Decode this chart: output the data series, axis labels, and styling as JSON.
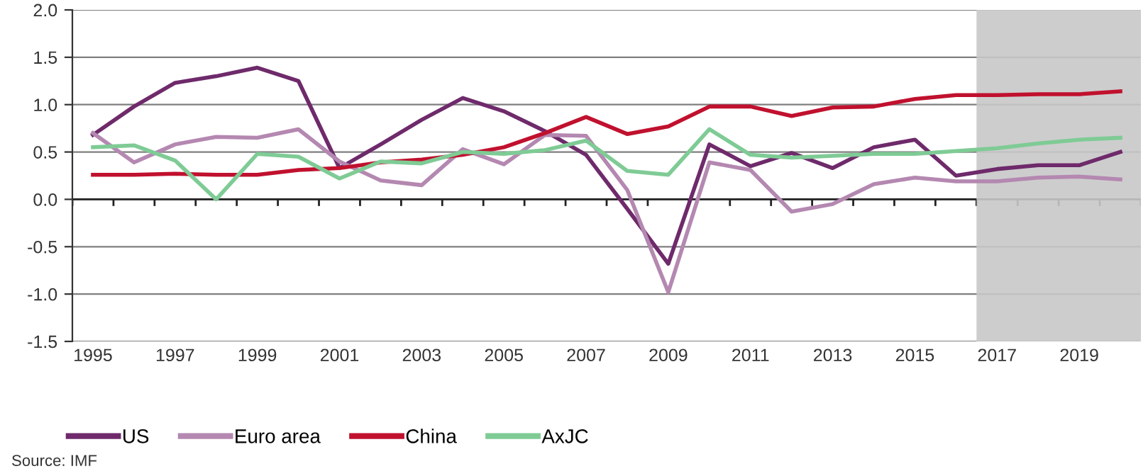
{
  "chart_data": {
    "type": "line",
    "x": [
      1995,
      1996,
      1997,
      1998,
      1999,
      2000,
      2001,
      2002,
      2003,
      2004,
      2005,
      2006,
      2007,
      2008,
      2009,
      2010,
      2011,
      2012,
      2013,
      2014,
      2015,
      2016,
      2017,
      2018,
      2019,
      2020
    ],
    "series": [
      {
        "name": "US",
        "color": "#6e2a6b",
        "values": [
          0.68,
          0.98,
          1.23,
          1.3,
          1.39,
          1.25,
          0.33,
          0.58,
          0.84,
          1.07,
          0.93,
          0.72,
          0.47,
          -0.1,
          -0.68,
          0.58,
          0.35,
          0.49,
          0.33,
          0.55,
          0.63,
          0.25,
          0.32,
          0.36,
          0.36,
          0.5
        ]
      },
      {
        "name": "Euro area",
        "color": "#b488b1",
        "values": [
          0.7,
          0.39,
          0.58,
          0.66,
          0.65,
          0.74,
          0.4,
          0.2,
          0.15,
          0.53,
          0.37,
          0.68,
          0.67,
          0.1,
          -0.98,
          0.39,
          0.31,
          -0.13,
          -0.05,
          0.16,
          0.23,
          0.19,
          0.19,
          0.23,
          0.24,
          0.21
        ]
      },
      {
        "name": "China",
        "color": "#c0112e",
        "values": [
          0.26,
          0.26,
          0.27,
          0.26,
          0.26,
          0.31,
          0.33,
          0.39,
          0.42,
          0.47,
          0.55,
          0.7,
          0.87,
          0.69,
          0.77,
          0.98,
          0.98,
          0.88,
          0.97,
          0.98,
          1.06,
          1.1,
          1.1,
          1.11,
          1.11,
          1.14
        ]
      },
      {
        "name": "AxJC",
        "color": "#7fcb95",
        "values": [
          0.55,
          0.57,
          0.41,
          0.0,
          0.48,
          0.45,
          0.22,
          0.4,
          0.38,
          0.5,
          0.48,
          0.52,
          0.62,
          0.3,
          0.26,
          0.74,
          0.47,
          0.44,
          0.46,
          0.48,
          0.48,
          0.51,
          0.54,
          0.59,
          0.63,
          0.65
        ]
      }
    ],
    "xlim": [
      1994.5,
      2020.5
    ],
    "xticks": [
      1995,
      1997,
      1999,
      2001,
      2003,
      2005,
      2007,
      2009,
      2011,
      2013,
      2015,
      2017,
      2019
    ],
    "ylim": [
      -1.5,
      2.0
    ],
    "yticks": [
      {
        "value": -1.5,
        "label": "-1.5"
      },
      {
        "value": -1.0,
        "label": "-1.0"
      },
      {
        "value": -0.5,
        "label": "-0.5"
      },
      {
        "value": 0.0,
        "label": "0.0"
      },
      {
        "value": 0.5,
        "label": "0.5"
      },
      {
        "value": 1.0,
        "label": "1.0"
      },
      {
        "value": 1.5,
        "label": "1.5"
      },
      {
        "value": 2.0,
        "label": "2.0"
      }
    ],
    "bands": [
      {
        "axis": "x",
        "from": 2016.5,
        "to": 2020.5,
        "color": "#c8c8c8"
      }
    ],
    "grid": "y",
    "legend": "bottom left",
    "marker": "none",
    "line_style": "solid",
    "annotations": [
      "Source: IMF"
    ]
  }
}
